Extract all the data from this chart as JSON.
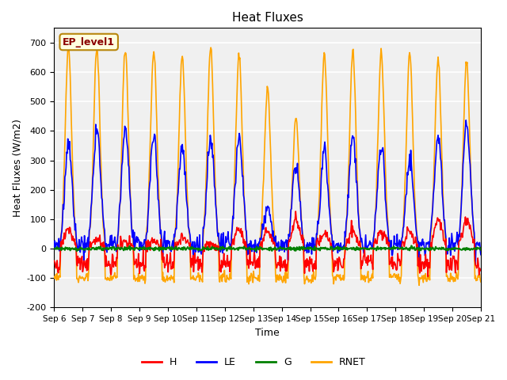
{
  "title": "Heat Fluxes",
  "ylabel": "Heat Fluxes (W/m2)",
  "xlabel": "Time",
  "annotation": "EP_level1",
  "ylim": [
    -200,
    750
  ],
  "yticks": [
    -200,
    -100,
    0,
    100,
    200,
    300,
    400,
    500,
    600,
    700
  ],
  "colors": {
    "H": "red",
    "LE": "blue",
    "G": "green",
    "RNET": "orange"
  },
  "x_tick_labels": [
    "Sep 6",
    "Sep 7",
    "Sep 8",
    "Sep 9",
    "Sep 10",
    "Sep 11",
    "Sep 12",
    "Sep 13",
    "Sep 14",
    "Sep 15",
    "Sep 16",
    "Sep 17",
    "Sep 18",
    "Sep 19",
    "Sep 20",
    "Sep 21"
  ],
  "n_days": 15,
  "pts_per_day": 48,
  "axes_bg": "#f0f0f0",
  "rnet_peaks": [
    690,
    680,
    680,
    675,
    660,
    680,
    660,
    540,
    445,
    660,
    665,
    665,
    665,
    640,
    630
  ],
  "le_peaks": [
    350,
    410,
    410,
    380,
    350,
    370,
    380,
    140,
    280,
    340,
    380,
    350,
    300,
    390,
    430
  ],
  "h_peaks": [
    65,
    30,
    25,
    30,
    40,
    15,
    60,
    60,
    100,
    55,
    60,
    60,
    60,
    100,
    100
  ]
}
